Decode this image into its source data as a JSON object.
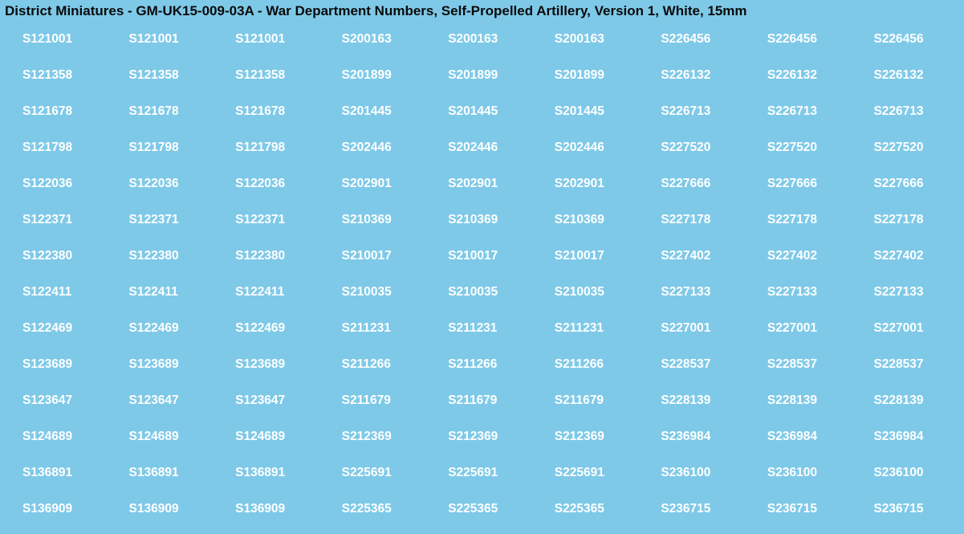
{
  "title": "District Miniatures - GM-UK15-009-03A - War Department Numbers, Self-Propelled Artillery, Version 1, White, 15mm",
  "colors": {
    "background": "#7ec9e8",
    "title": "#0a0a0a",
    "cell_text": "#ffffff"
  },
  "layout": {
    "cols": 9,
    "rows": 14,
    "repeat_each": 3
  },
  "columns": {
    "colA": [
      "S121001",
      "S121358",
      "S121678",
      "S121798",
      "S122036",
      "S122371",
      "S122380",
      "S122411",
      "S122469",
      "S123689",
      "S123647",
      "S124689",
      "S136891",
      "S136909"
    ],
    "colB": [
      "S200163",
      "S201899",
      "S201445",
      "S202446",
      "S202901",
      "S210369",
      "S210017",
      "S210035",
      "S211231",
      "S211266",
      "S211679",
      "S212369",
      "S225691",
      "S225365"
    ],
    "colC": [
      "S226456",
      "S226132",
      "S226713",
      "S227520",
      "S227666",
      "S227178",
      "S227402",
      "S227133",
      "S227001",
      "S228537",
      "S228139",
      "S236984",
      "S236100",
      "S236715"
    ]
  }
}
